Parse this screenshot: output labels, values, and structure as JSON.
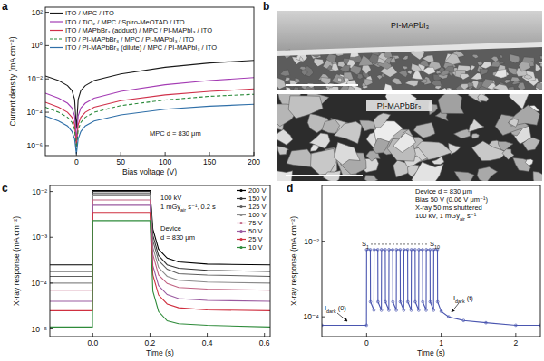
{
  "chart_data": [
    {
      "panel": "a",
      "type": "line",
      "log": "y",
      "grid": false,
      "legend": "upper left",
      "x_label": "Bias voltage (V)",
      "y_label": "Current density (mA cm⁻²)",
      "xlim": [
        -35,
        200
      ],
      "xticks": [
        0,
        50,
        100,
        150,
        200
      ],
      "ylim": [
        2.5e-07,
        200
      ],
      "yticks": [
        {
          "value": 1e-06,
          "label": "10⁻⁶"
        },
        {
          "value": 0.0001,
          "label": "10⁻⁴"
        },
        {
          "value": 0.01,
          "label": "10⁻²"
        },
        {
          "value": 1,
          "label": "10⁰"
        },
        {
          "value": 100,
          "label": "10²"
        }
      ],
      "x": [
        -35,
        -20,
        -10,
        -5,
        -2,
        0,
        2,
        5,
        10,
        20,
        50,
        100,
        150,
        200
      ],
      "series": [
        {
          "name": "ITO / MPC / ITO",
          "color": "#1a1a1a",
          "line_style": "solid",
          "values": [
            0.015,
            0.008,
            0.004,
            0.002,
            0.0006,
            1e-05,
            0.0006,
            0.002,
            0.004,
            0.008,
            0.02,
            0.05,
            0.09,
            0.13
          ]
        },
        {
          "name": "ITO / TiO₂ / MPC / Spiro-MeOTAD / ITO",
          "color": "#a43cb4",
          "line_style": "solid",
          "values": [
            0.0014,
            0.0007,
            0.00035,
            0.00018,
            6e-05,
            2e-06,
            6e-05,
            0.00018,
            0.00035,
            0.0007,
            0.0018,
            0.0045,
            0.008,
            0.012
          ]
        },
        {
          "name": "ITO / MAPbBr₃ (adduct) / MPC / PI-MAPbI₃ / ITO",
          "color": "#d0304a",
          "line_style": "solid",
          "values": [
            0.0004,
            0.0002,
            0.0001,
            5e-05,
            1.8e-05,
            8e-07,
            1.8e-05,
            5e-05,
            0.0001,
            0.0002,
            0.0005,
            0.0011,
            0.0018,
            0.0025
          ]
        },
        {
          "name": "ITO / PI-MAPbBr₃ / MPC / PI-MAPbI₃ / ITO",
          "color": "#2a8a3a",
          "line_style": "dashed",
          "values": [
            0.0002,
            0.0001,
            5e-05,
            2.5e-05,
            9e-06,
            5e-07,
            9e-06,
            2.5e-05,
            5e-05,
            0.0001,
            0.00025,
            0.00055,
            0.0009,
            0.0012
          ]
        },
        {
          "name": "ITO / PI-MAPbBr₃ (dilute) / MPC / PI-MAPbI₃ / ITO",
          "color": "#2f6fa8",
          "line_style": "solid",
          "values": [
            6e-05,
            3e-05,
            1.5e-05,
            7e-06,
            2.5e-06,
            3e-07,
            2.5e-06,
            7e-06,
            1.5e-05,
            3e-05,
            7e-05,
            0.00015,
            0.00023,
            0.0003
          ]
        }
      ],
      "annotations": [
        {
          "text": "MPC d = 830 μm"
        }
      ]
    },
    {
      "panel": "c",
      "type": "line",
      "log": "y",
      "grid": false,
      "legend": "upper right",
      "x_label": "Time (s)",
      "y_label": "X-ray response (mA cm⁻²)",
      "xlim": [
        -0.15,
        0.62
      ],
      "xticks": [
        {
          "value": 0,
          "label": "0.0"
        },
        0.2,
        0.4,
        0.6
      ],
      "ylim": [
        6.8e-06,
        0.0135
      ],
      "yticks": [
        {
          "value": 1e-05,
          "label": "10⁻⁵"
        },
        {
          "value": 0.0001,
          "label": "10⁻⁴"
        },
        {
          "value": 0.001,
          "label": "10⁻³"
        },
        {
          "value": 0.01,
          "label": "10⁻²"
        }
      ],
      "x": [
        -0.15,
        -0.001,
        0,
        0.2,
        0.21,
        0.23,
        0.26,
        0.3,
        0.4,
        0.62
      ],
      "series": [
        {
          "name": "200 V",
          "color": "#000000",
          "values": [
            0.00025,
            0.00025,
            0.0105,
            0.0105,
            0.0015,
            0.00055,
            0.00035,
            0.00029,
            0.00026,
            0.00025
          ]
        },
        {
          "name": "150 V",
          "color": "#333333",
          "values": [
            0.00018,
            0.00018,
            0.01,
            0.01,
            0.0011,
            0.0004,
            0.00025,
            0.00021,
            0.00019,
            0.00018
          ]
        },
        {
          "name": "125 V",
          "color": "#5e5e5e",
          "values": [
            0.00014,
            0.00014,
            0.009,
            0.009,
            0.00084,
            0.00031,
            0.0002,
            0.00016,
            0.00015,
            0.00014
          ]
        },
        {
          "name": "100 V",
          "color": "#8a8a8a",
          "values": [
            0.0001,
            0.0001,
            0.008,
            0.008,
            0.0006,
            0.00022,
            0.00014,
            0.000115,
            0.000105,
            0.0001
          ]
        },
        {
          "name": "75 V",
          "color": "#c06080",
          "values": [
            7e-05,
            7e-05,
            0.0065,
            0.0065,
            0.00042,
            0.00015,
            9.8e-05,
            8e-05,
            7.4e-05,
            7e-05
          ]
        },
        {
          "name": "50 V",
          "color": "#9a5aa0",
          "values": [
            4e-05,
            4e-05,
            0.005,
            0.005,
            0.00024,
            8.8e-05,
            5.6e-05,
            4.6e-05,
            4.2e-05,
            4e-05
          ]
        },
        {
          "name": "25 V",
          "color": "#d03040",
          "values": [
            2.5e-05,
            2.5e-05,
            0.0035,
            0.0035,
            0.00015,
            5.5e-05,
            3.5e-05,
            2.9e-05,
            2.6e-05,
            2.5e-05
          ]
        },
        {
          "name": "10 V",
          "color": "#2e8b3a",
          "values": [
            1.1e-05,
            1.1e-05,
            0.0023,
            0.0023,
            6.6e-05,
            2.4e-05,
            1.5e-05,
            1.3e-05,
            1.2e-05,
            1.1e-05
          ]
        }
      ],
      "annotations": [
        {
          "text": "100 kV"
        },
        {
          "text": "1 mGy",
          "sub": "air",
          "after": " s⁻¹, 0.2 s"
        },
        {
          "text": "Device"
        },
        {
          "text": "d = 830 μm"
        }
      ]
    },
    {
      "panel": "d",
      "type": "line",
      "log": "y",
      "grid": false,
      "x_label": "Time (s)",
      "y_label": "X-ray response (mA cm⁻²)",
      "xlim": [
        -0.6,
        2.33
      ],
      "xticks": [
        0,
        1,
        2
      ],
      "ylim": [
        3e-05,
        0.3
      ],
      "yticks": [
        {
          "value": 0.0001,
          "label": "10⁻⁴"
        },
        {
          "value": 0.01,
          "label": "10⁻²"
        }
      ],
      "x": [
        -0.6,
        -0.002,
        0,
        0.05,
        0.052,
        0.098,
        0.1,
        0.15,
        0.152,
        0.198,
        0.2,
        0.25,
        0.252,
        0.298,
        0.3,
        0.35,
        0.352,
        0.398,
        0.4,
        0.45,
        0.452,
        0.498,
        0.5,
        0.55,
        0.552,
        0.598,
        0.6,
        0.65,
        0.652,
        0.698,
        0.7,
        0.75,
        0.752,
        0.798,
        0.8,
        0.85,
        0.852,
        0.898,
        0.9,
        0.95,
        0.952,
        1.0,
        1.1,
        1.3,
        1.6,
        2.0,
        2.33
      ],
      "series": [
        {
          "color": "#4a56b0",
          "marker": "circle",
          "values": [
            6e-05,
            6e-05,
            0.006,
            0.006,
            0.00025,
            0.00015,
            0.006,
            0.006,
            0.00025,
            0.00015,
            0.006,
            0.006,
            0.00025,
            0.00015,
            0.006,
            0.006,
            0.00025,
            0.00015,
            0.006,
            0.006,
            0.00025,
            0.00015,
            0.006,
            0.006,
            0.00025,
            0.00015,
            0.006,
            0.006,
            0.00025,
            0.00015,
            0.006,
            0.006,
            0.00025,
            0.00015,
            0.006,
            0.006,
            0.00025,
            0.00015,
            0.006,
            0.006,
            0.00025,
            0.00014,
            0.0001,
            8e-05,
            7e-05,
            6e-05,
            6e-05
          ]
        }
      ],
      "annotations": [
        {
          "text": "Device d = 830 μm"
        },
        {
          "text": "Bias 50 V (0.06 V μm⁻¹)"
        },
        {
          "text": "X-ray 50 ms shuttered"
        },
        {
          "text": "100 kV, 1 mGy",
          "sub": "air",
          "after": " s⁻¹"
        },
        {
          "text": "S",
          "sub": "1"
        },
        {
          "text": "S",
          "sub": "10"
        },
        {
          "text": "I",
          "sub": "dark",
          "after": " (0)"
        },
        {
          "text": "I",
          "sub": "dark",
          "after": " (t)"
        }
      ]
    }
  ],
  "figure_b": {
    "panel": "b",
    "images": [
      {
        "label": "PI-MAPbI₃"
      },
      {
        "label": "PI-MAPbBr₃"
      }
    ]
  }
}
